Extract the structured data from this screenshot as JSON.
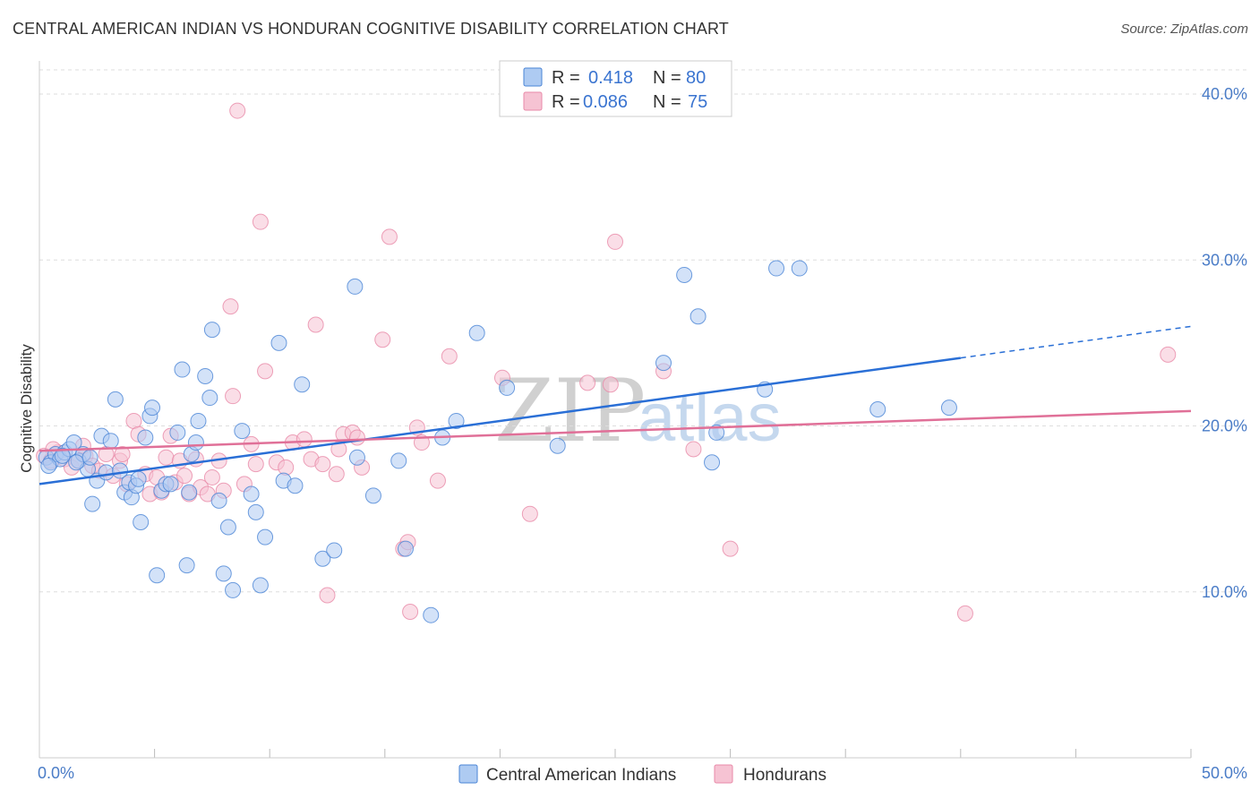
{
  "header": {
    "title": "CENTRAL AMERICAN INDIAN VS HONDURAN COGNITIVE DISABILITY CORRELATION CHART",
    "source": "Source: ZipAtlas.com"
  },
  "watermark": {
    "zip": "ZIP",
    "atlas": "atlas"
  },
  "legend": {
    "r_label": "R =",
    "n_label": "N =",
    "rows": [
      {
        "r": "0.418",
        "n": "80"
      },
      {
        "r": "0.086",
        "n": "75"
      }
    ]
  },
  "chart_data": {
    "type": "scatter",
    "title": "CENTRAL AMERICAN INDIAN VS HONDURAN COGNITIVE DISABILITY CORRELATION CHART",
    "xlabel": "",
    "ylabel": "Cognitive Disability",
    "xlim": [
      0,
      50
    ],
    "ylim": [
      0,
      42
    ],
    "x_tick_labels": [
      "0.0%",
      "50.0%"
    ],
    "y_ticks": [
      10,
      20,
      30,
      40
    ],
    "y_tick_labels": [
      "10.0%",
      "20.0%",
      "30.0%",
      "40.0%"
    ],
    "grid": true,
    "legend_position": "top-center",
    "colors": {
      "blue_fill": "#aecbf2",
      "blue_stroke": "#4a84d6",
      "blue_line": "#2a6fd6",
      "pink_fill": "#f6c3d3",
      "pink_stroke": "#e88aa8",
      "pink_line": "#e07098",
      "grid": "#dddddd",
      "axis": "#cccccc"
    },
    "series": [
      {
        "name": "Central American Indians",
        "r": 0.418,
        "n": 80,
        "trend": {
          "x0": 0,
          "y0": 16.5,
          "x1": 40,
          "y1": 24.1,
          "dash_x1": 50,
          "dash_y1": 26.0
        },
        "points": [
          [
            0.3,
            18.1
          ],
          [
            0.5,
            17.8
          ],
          [
            0.7,
            18.3
          ],
          [
            0.9,
            18.0
          ],
          [
            1.1,
            18.4
          ],
          [
            1.3,
            18.6
          ],
          [
            1.5,
            19.0
          ],
          [
            1.7,
            17.9
          ],
          [
            1.9,
            18.3
          ],
          [
            2.1,
            17.4
          ],
          [
            2.3,
            15.3
          ],
          [
            2.5,
            16.7
          ],
          [
            2.7,
            19.4
          ],
          [
            2.9,
            17.2
          ],
          [
            3.1,
            19.1
          ],
          [
            3.3,
            21.6
          ],
          [
            3.5,
            17.3
          ],
          [
            3.7,
            16.0
          ],
          [
            3.9,
            16.6
          ],
          [
            4.0,
            15.7
          ],
          [
            4.2,
            16.4
          ],
          [
            4.4,
            14.2
          ],
          [
            4.6,
            19.3
          ],
          [
            4.8,
            20.6
          ],
          [
            4.9,
            21.1
          ],
          [
            5.1,
            11.0
          ],
          [
            5.3,
            16.1
          ],
          [
            5.5,
            16.5
          ],
          [
            5.7,
            16.5
          ],
          [
            6.0,
            19.6
          ],
          [
            6.2,
            23.4
          ],
          [
            6.4,
            11.6
          ],
          [
            6.5,
            16.0
          ],
          [
            6.6,
            18.3
          ],
          [
            6.9,
            20.3
          ],
          [
            7.2,
            23.0
          ],
          [
            7.4,
            21.7
          ],
          [
            7.5,
            25.8
          ],
          [
            7.8,
            15.5
          ],
          [
            8.0,
            11.1
          ],
          [
            8.2,
            13.9
          ],
          [
            8.4,
            10.1
          ],
          [
            8.8,
            19.7
          ],
          [
            9.2,
            15.9
          ],
          [
            9.4,
            14.8
          ],
          [
            9.6,
            10.4
          ],
          [
            9.8,
            13.3
          ],
          [
            10.4,
            25.0
          ],
          [
            10.6,
            16.7
          ],
          [
            11.1,
            16.4
          ],
          [
            11.4,
            22.5
          ],
          [
            12.3,
            12.0
          ],
          [
            12.8,
            12.5
          ],
          [
            13.7,
            28.4
          ],
          [
            13.8,
            18.1
          ],
          [
            14.5,
            15.8
          ],
          [
            15.6,
            17.9
          ],
          [
            15.9,
            12.6
          ],
          [
            17.0,
            8.6
          ],
          [
            17.5,
            19.3
          ],
          [
            18.1,
            20.3
          ],
          [
            19.0,
            25.6
          ],
          [
            20.3,
            22.3
          ],
          [
            22.5,
            18.8
          ],
          [
            27.1,
            23.8
          ],
          [
            28.0,
            29.1
          ],
          [
            28.6,
            26.6
          ],
          [
            29.2,
            17.8
          ],
          [
            29.4,
            19.6
          ],
          [
            31.5,
            22.2
          ],
          [
            32.0,
            29.5
          ],
          [
            33.0,
            29.5
          ],
          [
            36.4,
            21.0
          ],
          [
            39.5,
            21.1
          ],
          [
            0.4,
            17.6
          ],
          [
            1.0,
            18.2
          ],
          [
            1.6,
            17.8
          ],
          [
            2.2,
            18.1
          ],
          [
            6.8,
            19.0
          ],
          [
            4.3,
            16.8
          ]
        ]
      },
      {
        "name": "Hondurans",
        "r": 0.086,
        "n": 75,
        "trend": {
          "x0": 0,
          "y0": 18.5,
          "x1": 50,
          "y1": 20.9
        },
        "points": [
          [
            0.2,
            18.2
          ],
          [
            0.5,
            17.9
          ],
          [
            0.8,
            18.4
          ],
          [
            1.1,
            18.0
          ],
          [
            1.4,
            17.5
          ],
          [
            1.7,
            17.9
          ],
          [
            2.0,
            18.2
          ],
          [
            2.3,
            17.6
          ],
          [
            2.6,
            17.3
          ],
          [
            2.9,
            18.3
          ],
          [
            3.2,
            17.0
          ],
          [
            3.5,
            17.9
          ],
          [
            3.8,
            16.5
          ],
          [
            4.1,
            20.3
          ],
          [
            4.3,
            19.5
          ],
          [
            4.6,
            17.1
          ],
          [
            4.8,
            15.9
          ],
          [
            5.1,
            16.9
          ],
          [
            5.3,
            16.0
          ],
          [
            5.5,
            18.1
          ],
          [
            5.7,
            19.4
          ],
          [
            5.9,
            16.6
          ],
          [
            6.1,
            17.9
          ],
          [
            6.3,
            17.0
          ],
          [
            6.5,
            15.9
          ],
          [
            6.8,
            18.0
          ],
          [
            7.0,
            16.3
          ],
          [
            7.3,
            15.9
          ],
          [
            7.5,
            16.9
          ],
          [
            7.8,
            17.9
          ],
          [
            8.0,
            16.1
          ],
          [
            8.3,
            27.2
          ],
          [
            8.4,
            21.8
          ],
          [
            8.6,
            39.0
          ],
          [
            8.9,
            16.5
          ],
          [
            9.2,
            18.9
          ],
          [
            9.4,
            17.7
          ],
          [
            9.6,
            32.3
          ],
          [
            9.8,
            23.3
          ],
          [
            10.3,
            17.8
          ],
          [
            10.7,
            17.5
          ],
          [
            11.0,
            19.0
          ],
          [
            11.5,
            19.2
          ],
          [
            11.8,
            18.0
          ],
          [
            12.0,
            26.1
          ],
          [
            12.3,
            17.7
          ],
          [
            12.5,
            9.8
          ],
          [
            12.9,
            17.1
          ],
          [
            13.0,
            18.6
          ],
          [
            13.2,
            19.5
          ],
          [
            13.6,
            19.6
          ],
          [
            13.8,
            19.3
          ],
          [
            14.0,
            17.5
          ],
          [
            14.9,
            25.2
          ],
          [
            15.2,
            31.4
          ],
          [
            15.8,
            12.6
          ],
          [
            16.0,
            13.0
          ],
          [
            16.1,
            8.8
          ],
          [
            16.4,
            19.9
          ],
          [
            16.6,
            19.0
          ],
          [
            17.3,
            16.7
          ],
          [
            17.8,
            24.2
          ],
          [
            20.1,
            22.9
          ],
          [
            21.3,
            14.7
          ],
          [
            23.8,
            22.6
          ],
          [
            24.8,
            22.5
          ],
          [
            25.0,
            31.1
          ],
          [
            27.1,
            23.3
          ],
          [
            28.4,
            18.6
          ],
          [
            30.0,
            12.6
          ],
          [
            40.2,
            8.7
          ],
          [
            49.0,
            24.3
          ],
          [
            0.6,
            18.6
          ],
          [
            1.9,
            18.8
          ],
          [
            3.6,
            18.3
          ]
        ]
      }
    ]
  },
  "bottom_legend": {
    "items": [
      {
        "label": "Central American Indians"
      },
      {
        "label": "Hondurans"
      }
    ]
  }
}
